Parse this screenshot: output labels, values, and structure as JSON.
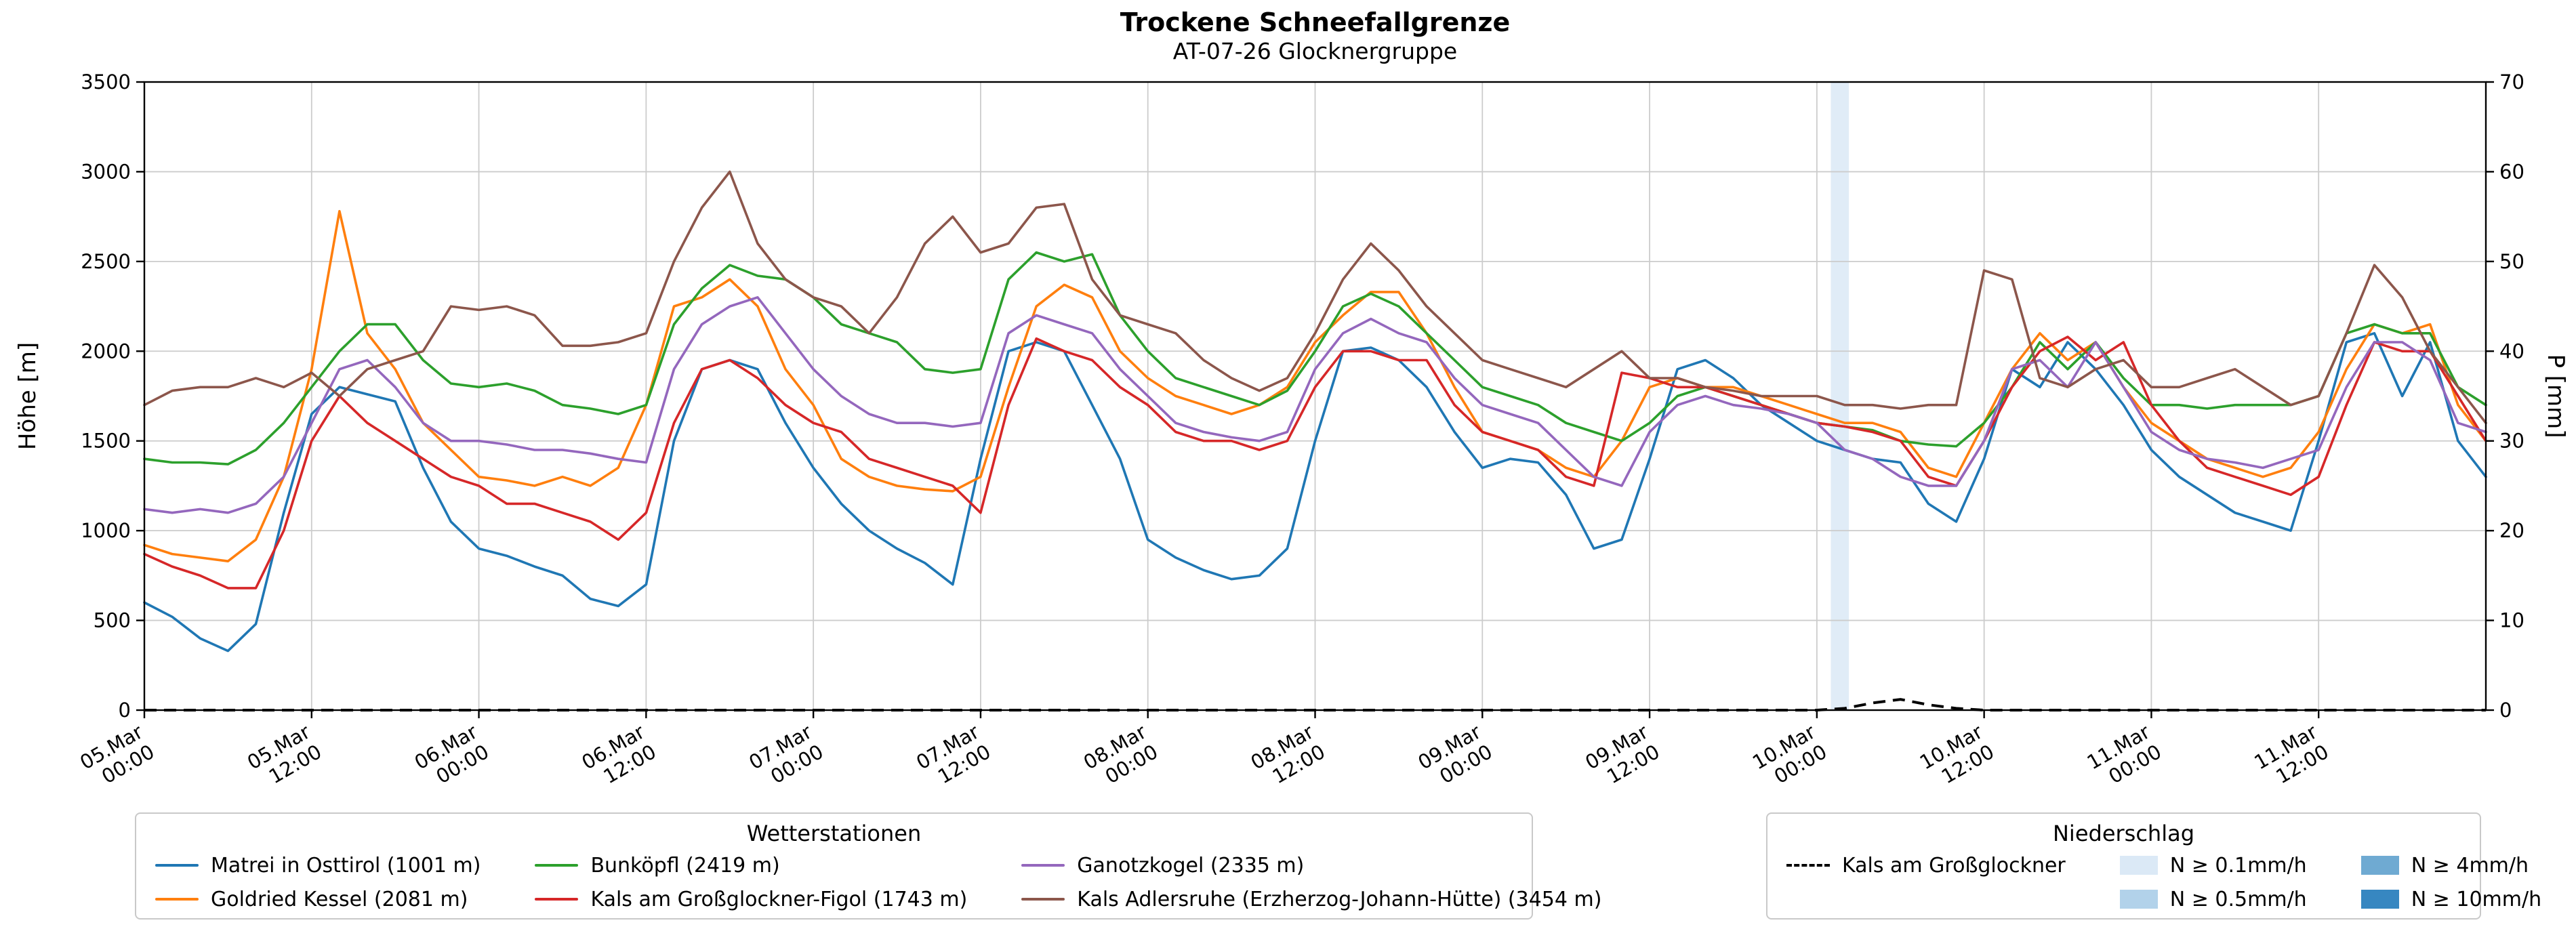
{
  "title": "Trockene Schneefallgrenze",
  "subtitle": "AT-07-26 Glocknergruppe",
  "chart_data": {
    "type": "line",
    "title": "Trockene Schneefallgrenze",
    "subtitle": "AT-07-26 Glocknergruppe",
    "ylabel_left": "Höhe [m]",
    "ylabel_right": "P [mm]",
    "ylim_left": [
      0,
      3500
    ],
    "ylim_right": [
      0,
      70
    ],
    "xlim_hours": [
      0,
      168
    ],
    "grid": true,
    "y_ticks_left": [
      0,
      500,
      1000,
      1500,
      2000,
      2500,
      3000,
      3500
    ],
    "y_ticks_right": [
      0,
      10,
      20,
      30,
      40,
      50,
      60,
      70
    ],
    "x_ticks": [
      {
        "t": 0,
        "date": "05.Mar",
        "time": "00:00"
      },
      {
        "t": 12,
        "date": "05.Mar",
        "time": "12:00"
      },
      {
        "t": 24,
        "date": "06.Mar",
        "time": "00:00"
      },
      {
        "t": 36,
        "date": "06.Mar",
        "time": "12:00"
      },
      {
        "t": 48,
        "date": "07.Mar",
        "time": "00:00"
      },
      {
        "t": 60,
        "date": "07.Mar",
        "time": "12:00"
      },
      {
        "t": 72,
        "date": "08.Mar",
        "time": "00:00"
      },
      {
        "t": 84,
        "date": "08.Mar",
        "time": "12:00"
      },
      {
        "t": 96,
        "date": "09.Mar",
        "time": "00:00"
      },
      {
        "t": 108,
        "date": "09.Mar",
        "time": "12:00"
      },
      {
        "t": 120,
        "date": "10.Mar",
        "time": "00:00"
      },
      {
        "t": 132,
        "date": "10.Mar",
        "time": "12:00"
      },
      {
        "t": 144,
        "date": "11.Mar",
        "time": "00:00"
      },
      {
        "t": 156,
        "date": "11.Mar",
        "time": "12:00"
      }
    ],
    "x_hours": [
      0,
      2,
      4,
      6,
      8,
      10,
      12,
      14,
      16,
      18,
      20,
      22,
      24,
      26,
      28,
      30,
      32,
      34,
      36,
      38,
      40,
      42,
      44,
      46,
      48,
      50,
      52,
      54,
      56,
      58,
      60,
      62,
      64,
      66,
      68,
      70,
      72,
      74,
      76,
      78,
      80,
      82,
      84,
      86,
      88,
      90,
      92,
      94,
      96,
      98,
      100,
      102,
      104,
      106,
      108,
      110,
      112,
      114,
      116,
      118,
      120,
      122,
      124,
      126,
      128,
      130,
      132,
      134,
      136,
      138,
      140,
      142,
      144,
      146,
      148,
      150,
      152,
      154,
      156,
      158,
      160,
      162,
      164,
      166,
      168
    ],
    "series": [
      {
        "name": "Matrei in Osttirol (1001 m)",
        "color": "#1f77b4",
        "values": [
          600,
          520,
          400,
          330,
          480,
          1100,
          1650,
          1800,
          1760,
          1720,
          1350,
          1050,
          900,
          860,
          800,
          750,
          620,
          580,
          700,
          1500,
          1900,
          1950,
          1900,
          1600,
          1350,
          1150,
          1000,
          900,
          820,
          700,
          1400,
          2000,
          2050,
          2000,
          1700,
          1400,
          950,
          850,
          780,
          730,
          750,
          900,
          1500,
          2000,
          2020,
          1950,
          1800,
          1550,
          1350,
          1400,
          1380,
          1200,
          900,
          950,
          1400,
          1900,
          1950,
          1850,
          1700,
          1600,
          1500,
          1450,
          1400,
          1380,
          1150,
          1050,
          1400,
          1900,
          1800,
          2050,
          1900,
          1700,
          1450,
          1300,
          1200,
          1100,
          1050,
          1000,
          1500,
          2050,
          2100,
          1750,
          2050,
          1500,
          1300
        ]
      },
      {
        "name": "Goldried Kessel (2081 m)",
        "color": "#ff7f0e",
        "values": [
          920,
          870,
          850,
          830,
          950,
          1300,
          1900,
          2780,
          2100,
          1900,
          1600,
          1450,
          1300,
          1280,
          1250,
          1300,
          1250,
          1350,
          1700,
          2250,
          2300,
          2400,
          2250,
          1900,
          1700,
          1400,
          1300,
          1250,
          1230,
          1220,
          1300,
          1800,
          2250,
          2370,
          2300,
          2000,
          1850,
          1750,
          1700,
          1650,
          1700,
          1800,
          2050,
          2200,
          2330,
          2330,
          2100,
          1800,
          1550,
          1500,
          1450,
          1350,
          1300,
          1500,
          1800,
          1850,
          1800,
          1800,
          1750,
          1700,
          1650,
          1600,
          1600,
          1550,
          1350,
          1300,
          1600,
          1900,
          2100,
          1950,
          2050,
          1800,
          1600,
          1500,
          1400,
          1350,
          1300,
          1350,
          1550,
          1900,
          2150,
          2100,
          2150,
          1700,
          1500
        ]
      },
      {
        "name": "Bunköpfl (2419 m)",
        "color": "#2ca02c",
        "values": [
          1400,
          1380,
          1380,
          1370,
          1450,
          1600,
          1800,
          2000,
          2150,
          2150,
          1950,
          1820,
          1800,
          1820,
          1780,
          1700,
          1680,
          1650,
          1700,
          2150,
          2350,
          2480,
          2420,
          2400,
          2300,
          2150,
          2100,
          2050,
          1900,
          1880,
          1900,
          2400,
          2550,
          2500,
          2540,
          2200,
          2000,
          1850,
          1800,
          1750,
          1700,
          1780,
          2000,
          2250,
          2320,
          2250,
          2100,
          1950,
          1800,
          1750,
          1700,
          1600,
          1550,
          1500,
          1600,
          1750,
          1800,
          1750,
          1700,
          1650,
          1600,
          1580,
          1560,
          1500,
          1480,
          1470,
          1600,
          1800,
          2050,
          1900,
          2050,
          1850,
          1700,
          1700,
          1680,
          1700,
          1700,
          1700,
          1750,
          2100,
          2150,
          2100,
          2100,
          1800,
          1700
        ]
      },
      {
        "name": "Kals am Großglockner-Figol (1743 m)",
        "color": "#d62728",
        "values": [
          870,
          800,
          750,
          680,
          680,
          1000,
          1500,
          1750,
          1600,
          1500,
          1400,
          1300,
          1250,
          1150,
          1150,
          1100,
          1050,
          950,
          1100,
          1600,
          1900,
          1950,
          1850,
          1700,
          1600,
          1550,
          1400,
          1350,
          1300,
          1250,
          1100,
          1700,
          2070,
          2000,
          1950,
          1800,
          1700,
          1550,
          1500,
          1500,
          1450,
          1500,
          1800,
          2000,
          2000,
          1950,
          1950,
          1700,
          1550,
          1500,
          1450,
          1300,
          1250,
          1880,
          1850,
          1800,
          1800,
          1750,
          1700,
          1650,
          1600,
          1580,
          1550,
          1500,
          1300,
          1250,
          1500,
          1800,
          2000,
          2080,
          1950,
          2050,
          1700,
          1500,
          1350,
          1300,
          1250,
          1200,
          1300,
          1700,
          2050,
          2000,
          2000,
          1750,
          1500
        ]
      },
      {
        "name": "Ganotzkogel (2335 m)",
        "color": "#9467bd",
        "values": [
          1120,
          1100,
          1120,
          1100,
          1150,
          1300,
          1600,
          1900,
          1950,
          1800,
          1600,
          1500,
          1500,
          1480,
          1450,
          1450,
          1430,
          1400,
          1380,
          1900,
          2150,
          2250,
          2300,
          2100,
          1900,
          1750,
          1650,
          1600,
          1600,
          1580,
          1600,
          2100,
          2200,
          2150,
          2100,
          1900,
          1750,
          1600,
          1550,
          1520,
          1500,
          1550,
          1900,
          2100,
          2180,
          2100,
          2050,
          1850,
          1700,
          1650,
          1600,
          1450,
          1300,
          1250,
          1550,
          1700,
          1750,
          1700,
          1680,
          1650,
          1600,
          1450,
          1400,
          1300,
          1250,
          1250,
          1500,
          1900,
          1950,
          1800,
          2050,
          1800,
          1550,
          1450,
          1400,
          1380,
          1350,
          1400,
          1450,
          1800,
          2050,
          2050,
          1950,
          1600,
          1550
        ]
      },
      {
        "name": "Kals Adlersruhe (Erzherzog-Johann-Hütte) (3454 m)",
        "color": "#8c564b",
        "values": [
          1700,
          1780,
          1800,
          1800,
          1850,
          1800,
          1880,
          1750,
          1900,
          1950,
          2000,
          2250,
          2230,
          2250,
          2200,
          2030,
          2030,
          2050,
          2100,
          2500,
          2800,
          3000,
          2600,
          2400,
          2300,
          2250,
          2100,
          2300,
          2600,
          2750,
          2550,
          2600,
          2800,
          2820,
          2400,
          2200,
          2150,
          2100,
          1950,
          1850,
          1780,
          1850,
          2100,
          2400,
          2600,
          2450,
          2250,
          2100,
          1950,
          1900,
          1850,
          1800,
          1900,
          2000,
          1850,
          1850,
          1800,
          1780,
          1750,
          1750,
          1750,
          1700,
          1700,
          1680,
          1700,
          1700,
          2450,
          2400,
          1850,
          1800,
          1900,
          1950,
          1800,
          1800,
          1850,
          1900,
          1800,
          1700,
          1750,
          2100,
          2480,
          2300,
          2000,
          1800,
          1600
        ]
      }
    ],
    "precip_line": {
      "name": "Kals am Großglockner",
      "color": "#000000",
      "style": "dashed",
      "axis": "right",
      "unit": "mm",
      "values": [
        0,
        0,
        0,
        0,
        0,
        0,
        0,
        0,
        0,
        0,
        0,
        0,
        0,
        0,
        0,
        0,
        0,
        0,
        0,
        0,
        0,
        0,
        0,
        0,
        0,
        0,
        0,
        0,
        0,
        0,
        0,
        0,
        0,
        0,
        0,
        0,
        0,
        0,
        0,
        0,
        0,
        0,
        0,
        0,
        0,
        0,
        0,
        0,
        0,
        0,
        0,
        0,
        0,
        0,
        0,
        0,
        0,
        0,
        0,
        0,
        0,
        0.2,
        0.8,
        1.2,
        0.6,
        0.2,
        0,
        0,
        0,
        0,
        0,
        0,
        0,
        0,
        0,
        0,
        0,
        0,
        0,
        0,
        0,
        0,
        0,
        0,
        0
      ]
    },
    "precip_band": {
      "t_start": 121,
      "t_end": 122.3,
      "color": "#dbe9f6",
      "level": "N ≥ 0.1mm/h"
    }
  },
  "legend_stations": {
    "title": "Wetterstationen",
    "items": [
      {
        "label": "Matrei in Osttirol (1001 m)",
        "color": "#1f77b4"
      },
      {
        "label": "Goldried Kessel (2081 m)",
        "color": "#ff7f0e"
      },
      {
        "label": "Bunköpfl (2419 m)",
        "color": "#2ca02c"
      },
      {
        "label": "Kals am Großglockner-Figol (1743 m)",
        "color": "#d62728"
      },
      {
        "label": "Ganotzkogel (2335 m)",
        "color": "#9467bd"
      },
      {
        "label": "Kals Adlersruhe (Erzherzog-Johann-Hütte) (3454 m)",
        "color": "#8c564b"
      }
    ]
  },
  "legend_precip": {
    "title": "Niederschlag",
    "line_item": "Kals am Großglockner",
    "levels": [
      {
        "label": "N ≥ 0.1mm/h",
        "color": "#dbe9f6"
      },
      {
        "label": "N ≥ 0.5mm/h",
        "color": "#b2d2ea"
      },
      {
        "label": "N ≥ 4mm/h",
        "color": "#6faad2"
      },
      {
        "label": "N ≥ 10mm/h",
        "color": "#3787c1"
      }
    ]
  }
}
